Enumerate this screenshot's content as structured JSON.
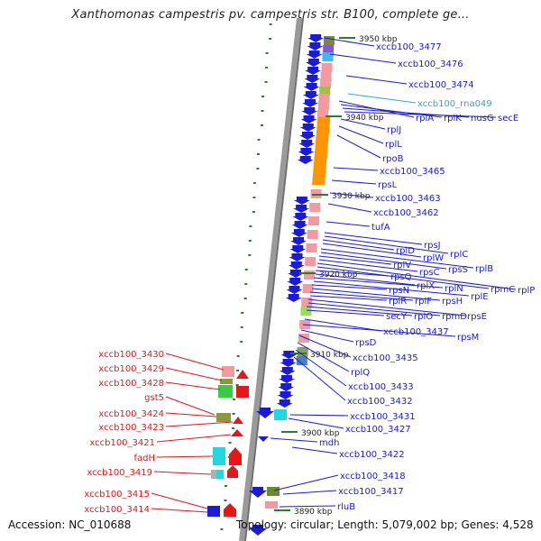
{
  "title": "Xanthomonas campestris pv. campestris str. B100, complete ge...",
  "accession": "Accession: NC_010688",
  "topology": "Topology: circular; Length: 5,079,002 bp; Genes: 4,528",
  "colors": {
    "forward_gene": "#1a1adb",
    "reverse_gene": "#e8151b",
    "rna_label": "#33a8cc",
    "pink_block": "#f29aa0",
    "orange_block": "#ff9600",
    "tick_green": "#2e7d2e"
  },
  "scale_ticks": [
    "3950 kbp",
    "3940 kbp",
    "3930 kbp",
    "3920 kbp",
    "3910 kbp",
    "3900 kbp",
    "3890 kbp"
  ],
  "right_labels": [
    "xccb100_3477",
    "xccb100_3476",
    "xccb100_3474",
    "xccb100_rna049",
    "rplA",
    "rplK",
    "nusG",
    "secE",
    "rplJ",
    "rplL",
    "rpoB",
    "xccb100_3465",
    "rpsL",
    "xccb100_3463",
    "xccb100_3462",
    "tufA",
    "rpsJ",
    "rplC",
    "rplD",
    "rplW",
    "rplB",
    "rpsS",
    "rplV",
    "rpsC",
    "rplP",
    "rpmC",
    "rpsQ",
    "rplX",
    "rplN",
    "rplE",
    "rpsN",
    "rpsH",
    "rplF",
    "rplR",
    "rpsE",
    "rpmD",
    "rplO",
    "secY",
    "xccb100_3437",
    "rpsM",
    "rpsD",
    "xccb100_3435",
    "rplQ",
    "xccb100_3433",
    "xccb100_3432",
    "xccb100_3431",
    "xccb100_3427",
    "mdh",
    "xccb100_3422",
    "xccb100_3418",
    "xccb100_3417",
    "rluB"
  ],
  "left_labels": [
    "xccb100_3430",
    "xccb100_3429",
    "xccb100_3428",
    "gst5",
    "xccb100_3424",
    "xccb100_3423",
    "xccb100_3421",
    "fadH",
    "xccb100_3419",
    "xccb100_3415",
    "xccb100_3414"
  ]
}
